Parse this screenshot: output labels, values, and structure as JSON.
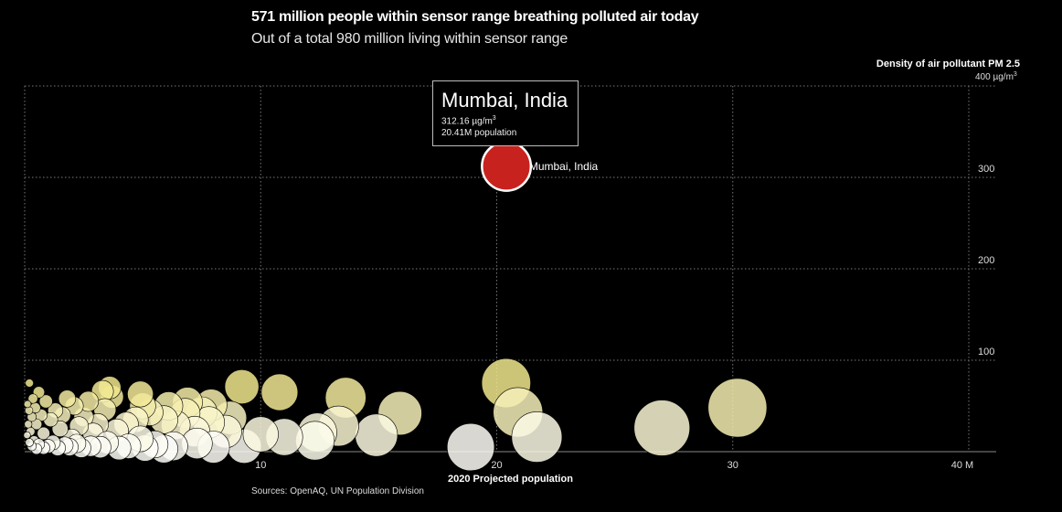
{
  "header": {
    "title": "571 million people within sensor range breathing polluted air today",
    "subtitle": "Out of a total 980 million living within sensor range"
  },
  "footer": {
    "source": "Sources: OpenAQ, UN Population Division"
  },
  "tooltip": {
    "city": "Mumbai, India",
    "value_num": "312.16 µg/m",
    "value_sup": "3",
    "population": "20.41M population"
  },
  "colors": {
    "background": "#000000",
    "highlight": "#c8221f",
    "bubble_low": "#ffffff",
    "bubble_high": "#f0e68c"
  },
  "chart_data": {
    "type": "scatter",
    "title": "571 million people within sensor range breathing polluted air today",
    "subtitle": "Out of a total 980 million living within sensor range",
    "xlabel": "2020 Projected population",
    "ylabel": "Density of air pollutant PM 2.5",
    "y_unit_label": "400 µg/m",
    "y_unit_sup": "3",
    "xlim": [
      0,
      40
    ],
    "ylim": [
      0,
      400
    ],
    "x_ticks": [
      "10",
      "20",
      "30",
      "40 M"
    ],
    "y_ticks": [
      "100",
      "200",
      "300"
    ],
    "grid": true,
    "highlight": {
      "label": "Mumbai, India",
      "x": 20.41,
      "y": 312.16
    },
    "points": [
      {
        "x": 30.2,
        "y": 48
      },
      {
        "x": 27.0,
        "y": 26
      },
      {
        "x": 20.4,
        "y": 75
      },
      {
        "x": 20.9,
        "y": 43
      },
      {
        "x": 21.7,
        "y": 16
      },
      {
        "x": 18.9,
        "y": 5
      },
      {
        "x": 15.9,
        "y": 42
      },
      {
        "x": 14.9,
        "y": 18
      },
      {
        "x": 13.6,
        "y": 59
      },
      {
        "x": 13.3,
        "y": 28
      },
      {
        "x": 12.4,
        "y": 21
      },
      {
        "x": 12.3,
        "y": 12
      },
      {
        "x": 11.0,
        "y": 16
      },
      {
        "x": 10.8,
        "y": 65
      },
      {
        "x": 9.2,
        "y": 71
      },
      {
        "x": 9.3,
        "y": 6
      },
      {
        "x": 10.0,
        "y": 19
      },
      {
        "x": 8.7,
        "y": 37
      },
      {
        "x": 8.5,
        "y": 22
      },
      {
        "x": 7.9,
        "y": 51
      },
      {
        "x": 7.5,
        "y": 43
      },
      {
        "x": 7.8,
        "y": 32
      },
      {
        "x": 6.9,
        "y": 54
      },
      {
        "x": 6.8,
        "y": 42
      },
      {
        "x": 7.2,
        "y": 22
      },
      {
        "x": 6.4,
        "y": 29
      },
      {
        "x": 6.1,
        "y": 50
      },
      {
        "x": 5.9,
        "y": 35
      },
      {
        "x": 5.3,
        "y": 43
      },
      {
        "x": 5.0,
        "y": 50
      },
      {
        "x": 4.7,
        "y": 35
      },
      {
        "x": 4.9,
        "y": 63
      },
      {
        "x": 4.3,
        "y": 30
      },
      {
        "x": 3.7,
        "y": 60
      },
      {
        "x": 3.6,
        "y": 70
      },
      {
        "x": 3.3,
        "y": 66
      },
      {
        "x": 3.4,
        "y": 46
      },
      {
        "x": 3.9,
        "y": 23
      },
      {
        "x": 3.1,
        "y": 30
      },
      {
        "x": 2.5,
        "y": 38
      },
      {
        "x": 2.7,
        "y": 55
      },
      {
        "x": 2.9,
        "y": 20
      },
      {
        "x": 2.1,
        "y": 50
      },
      {
        "x": 2.3,
        "y": 28
      },
      {
        "x": 2.0,
        "y": 15
      },
      {
        "x": 1.6,
        "y": 40
      },
      {
        "x": 1.8,
        "y": 58
      },
      {
        "x": 1.5,
        "y": 25
      },
      {
        "x": 1.3,
        "y": 45
      },
      {
        "x": 1.1,
        "y": 35
      },
      {
        "x": 0.9,
        "y": 55
      },
      {
        "x": 0.8,
        "y": 20
      },
      {
        "x": 0.7,
        "y": 40
      },
      {
        "x": 0.6,
        "y": 65
      },
      {
        "x": 0.5,
        "y": 30
      },
      {
        "x": 0.45,
        "y": 48
      },
      {
        "x": 0.4,
        "y": 12
      },
      {
        "x": 0.35,
        "y": 58
      },
      {
        "x": 0.3,
        "y": 38
      },
      {
        "x": 0.25,
        "y": 22
      },
      {
        "x": 0.2,
        "y": 75
      },
      {
        "x": 0.18,
        "y": 45
      },
      {
        "x": 0.15,
        "y": 30
      },
      {
        "x": 0.12,
        "y": 52
      },
      {
        "x": 0.1,
        "y": 18
      },
      {
        "x": 8.0,
        "y": 5
      },
      {
        "x": 7.3,
        "y": 9
      },
      {
        "x": 6.3,
        "y": 6
      },
      {
        "x": 5.9,
        "y": 3
      },
      {
        "x": 5.5,
        "y": 8
      },
      {
        "x": 5.1,
        "y": 4
      },
      {
        "x": 4.9,
        "y": 14
      },
      {
        "x": 4.4,
        "y": 6
      },
      {
        "x": 4.0,
        "y": 4
      },
      {
        "x": 3.5,
        "y": 10
      },
      {
        "x": 3.2,
        "y": 5
      },
      {
        "x": 2.8,
        "y": 6
      },
      {
        "x": 2.4,
        "y": 4
      },
      {
        "x": 2.2,
        "y": 9
      },
      {
        "x": 1.9,
        "y": 5
      },
      {
        "x": 1.7,
        "y": 7
      },
      {
        "x": 1.4,
        "y": 4
      },
      {
        "x": 1.2,
        "y": 10
      },
      {
        "x": 1.0,
        "y": 6
      },
      {
        "x": 0.8,
        "y": 4
      },
      {
        "x": 0.6,
        "y": 8
      },
      {
        "x": 0.5,
        "y": 3
      },
      {
        "x": 0.3,
        "y": 6
      },
      {
        "x": 0.2,
        "y": 10
      }
    ]
  }
}
